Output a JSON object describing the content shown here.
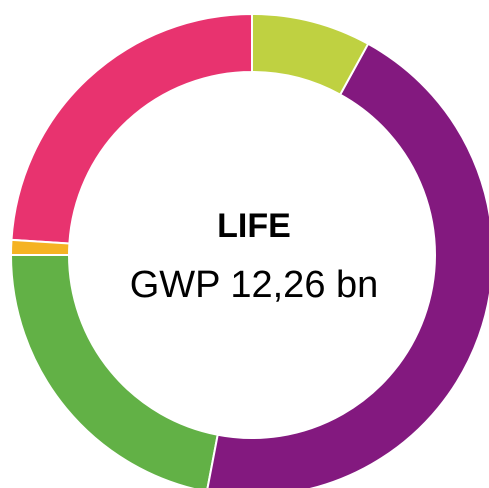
{
  "chart_data": {
    "type": "donut",
    "title": "LIFE",
    "subtitle": "GWP 12,26 bn",
    "categories": [
      null,
      null,
      null,
      null,
      null
    ],
    "values": [
      8,
      45,
      22,
      1,
      24
    ],
    "colors": [
      "#bfd141",
      "#83197f",
      "#62b146",
      "#f5b323",
      "#e8336f"
    ]
  }
}
